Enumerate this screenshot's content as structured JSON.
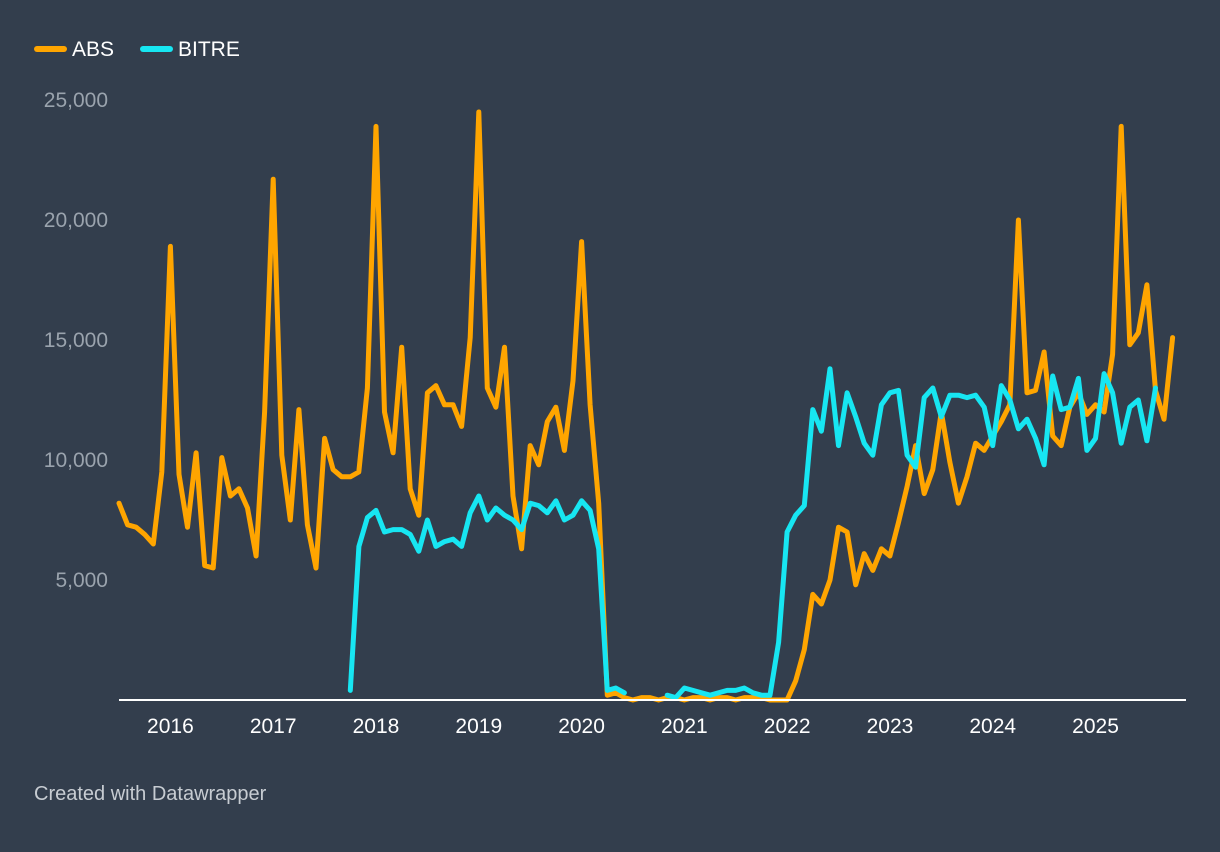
{
  "colors": {
    "background": "#333e4d",
    "abs": "#ffa500",
    "bitre": "#17e6f2",
    "axis": "#ffffff",
    "tick_y": "#9aa3ad",
    "footer": "#c7ccd2"
  },
  "footer": {
    "credit": "Created with Datawrapper"
  },
  "chart_data": {
    "type": "line",
    "title": "",
    "xlabel": "",
    "ylabel": "",
    "xlim": [
      2015.5,
      2025.88
    ],
    "ylim": [
      0,
      25000
    ],
    "y_ticks": [
      {
        "value": 5000,
        "label": "5,000"
      },
      {
        "value": 10000,
        "label": "10,000"
      },
      {
        "value": 15000,
        "label": "15,000"
      },
      {
        "value": 20000,
        "label": "20,000"
      },
      {
        "value": 25000,
        "label": "25,000"
      }
    ],
    "x_ticks": [
      {
        "value": 2016,
        "label": "2016"
      },
      {
        "value": 2017,
        "label": "2017"
      },
      {
        "value": 2018,
        "label": "2018"
      },
      {
        "value": 2019,
        "label": "2019"
      },
      {
        "value": 2020,
        "label": "2020"
      },
      {
        "value": 2021,
        "label": "2021"
      },
      {
        "value": 2022,
        "label": "2022"
      },
      {
        "value": 2023,
        "label": "2023"
      },
      {
        "value": 2024,
        "label": "2024"
      },
      {
        "value": 2025,
        "label": "2025"
      }
    ],
    "legend_position": "top-left",
    "series": [
      {
        "name": "ABS",
        "color": "#ffa500",
        "start": 2015.5,
        "step": 0.08333,
        "values": [
          8200,
          7300,
          7200,
          6900,
          6500,
          9500,
          18900,
          9400,
          7200,
          10300,
          5600,
          5500,
          10100,
          8500,
          8800,
          8000,
          6000,
          12000,
          21700,
          10200,
          7500,
          12100,
          7300,
          5500,
          10900,
          9600,
          9300,
          9300,
          9500,
          13000,
          23900,
          12000,
          10300,
          14700,
          8800,
          7700,
          12800,
          13100,
          12300,
          12300,
          11400,
          15100,
          24500,
          13000,
          12200,
          14700,
          8500,
          6300,
          10600,
          9800,
          11600,
          12200,
          10400,
          13300,
          19100,
          12300,
          8200,
          200,
          300,
          100,
          0,
          100,
          100,
          0,
          100,
          100,
          0,
          100,
          100,
          0,
          100,
          100,
          0,
          100,
          100,
          100,
          0,
          0,
          0,
          800,
          2100,
          4400,
          4000,
          5000,
          7200,
          7000,
          4800,
          6100,
          5400,
          6300,
          6000,
          7400,
          8900,
          10600,
          8600,
          9600,
          12000,
          9900,
          8200,
          9300,
          10700,
          10400,
          11000,
          11600,
          12300,
          20000,
          12800,
          12900,
          14500,
          11000,
          10600,
          12200,
          12800,
          11900,
          12300,
          12000,
          14400,
          23900,
          14800,
          15300,
          17300,
          12900,
          11700,
          15100
        ]
      },
      {
        "name": "BITRE",
        "color": "#17e6f2",
        "start": 2017.75,
        "step": 0.08333,
        "values": [
          400,
          6400,
          7600,
          7900,
          7000,
          7100,
          7100,
          6900,
          6200,
          7500,
          6400,
          6600,
          6700,
          6400,
          7800,
          8500,
          7500,
          8000,
          7700,
          7500,
          7100,
          8200,
          8100,
          7800,
          8300,
          7500,
          7700,
          8300,
          7900,
          6300,
          400,
          500,
          300,
          null,
          null,
          null,
          null,
          200,
          100,
          500,
          400,
          300,
          200,
          300,
          400,
          400,
          500,
          300,
          200,
          200,
          2400,
          7000,
          7700,
          8100,
          12100,
          11200,
          13800,
          10600,
          12800,
          11800,
          10700,
          10200,
          12300,
          12800,
          12900,
          10200,
          9700,
          12600,
          13000,
          11800,
          12700,
          12700,
          12600,
          12700,
          12200,
          10600,
          13100,
          12500,
          11300,
          11700,
          10900,
          9800,
          13500,
          12100,
          12200,
          13400,
          10400,
          10900,
          13600,
          12800,
          10700,
          12200,
          12500,
          10800,
          13000
        ]
      }
    ]
  }
}
